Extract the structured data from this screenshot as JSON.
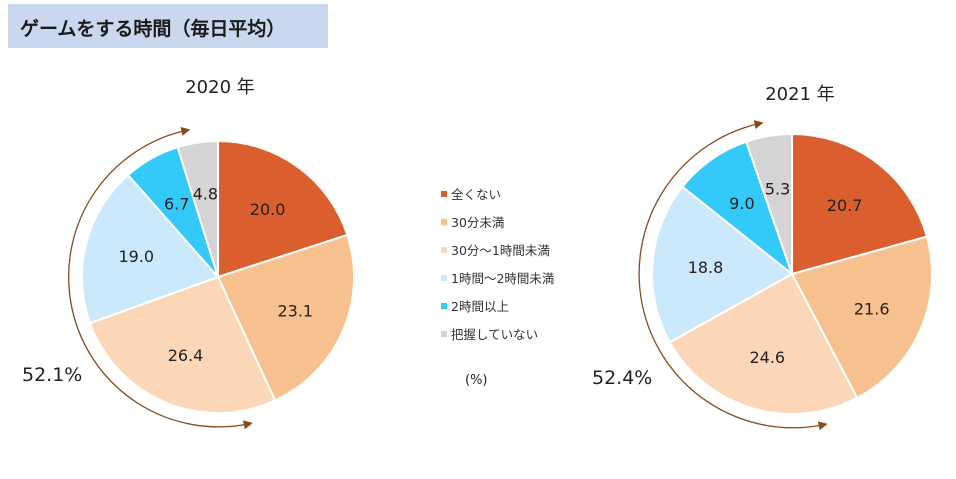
{
  "title": "ゲームをする時間（毎日平均）",
  "unit": "(%)",
  "chart_data": [
    {
      "type": "pie",
      "title": "2020 年",
      "categories": [
        "全くない",
        "30分未満",
        "30分～1時間未満",
        "1時間～2時間未満",
        "2時間以上",
        "把握していない"
      ],
      "values": [
        20.0,
        23.1,
        26.4,
        19.0,
        6.7,
        4.8
      ],
      "value_labels": [
        "20.0",
        "23.1",
        "26.4",
        "19.0",
        "6.7",
        "4.8"
      ],
      "colors": [
        "#db5f2e",
        "#f7c08f",
        "#fcd7b7",
        "#cce9fb",
        "#33c9f8",
        "#d4d4d4"
      ],
      "annotation": "52.1%"
    },
    {
      "type": "pie",
      "title": "2021 年",
      "categories": [
        "全くない",
        "30分未満",
        "30分～1時間未満",
        "1時間～2時間未満",
        "2時間以上",
        "把握していない"
      ],
      "values": [
        20.7,
        21.6,
        24.6,
        18.8,
        9.0,
        5.3
      ],
      "value_labels": [
        "20.7",
        "21.6",
        "24.6",
        "18.8",
        "9.0",
        "5.3"
      ],
      "colors": [
        "#db5f2e",
        "#f7c08f",
        "#fcd7b7",
        "#cce9fb",
        "#33c9f8",
        "#d4d4d4"
      ],
      "annotation": "52.4%"
    }
  ],
  "legend": [
    {
      "label": "全くない",
      "color": "#db5f2e"
    },
    {
      "label": "30分未満",
      "color": "#f7c08f"
    },
    {
      "label": "30分～1時間未満",
      "color": "#fcd7b7"
    },
    {
      "label": "1時間～2時間未満",
      "color": "#cce9fb"
    },
    {
      "label": "2時間以上",
      "color": "#33c9f8"
    },
    {
      "label": "把握していない",
      "color": "#d4d4d4"
    }
  ],
  "arc_color": "#8a4a1c"
}
